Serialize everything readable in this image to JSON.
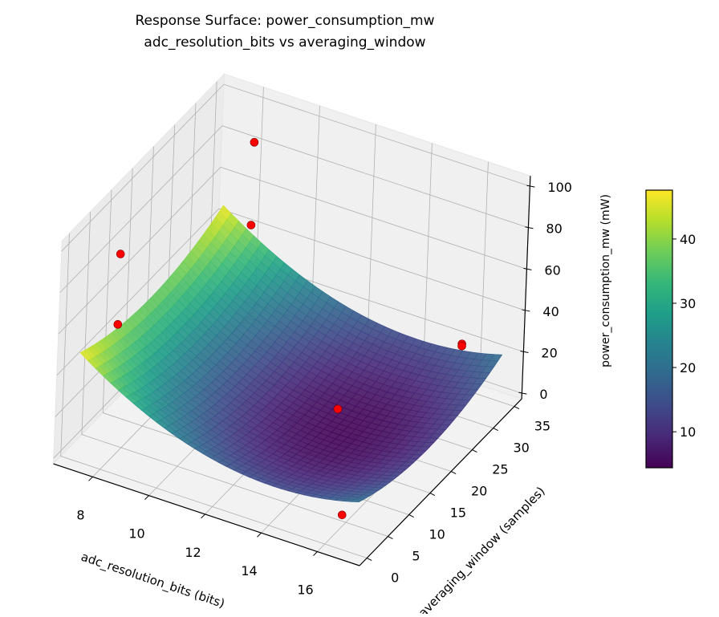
{
  "chart_data": {
    "type": "surface3d",
    "title": "Response Surface: power_consumption_mw",
    "subtitle": "adc_resolution_bits vs averaging_window",
    "xlabel": "adc_resolution_bits (bits)",
    "ylabel": "averaging_window (samples)",
    "zlabel": "power_consumption_mw (mW)",
    "xlim": [
      6.6,
      17.5
    ],
    "ylim": [
      -1.75,
      36.75
    ],
    "zlim": [
      -2.7,
      105
    ],
    "x_ticks": [
      8,
      10,
      12,
      14,
      16
    ],
    "y_ticks": [
      0,
      5,
      10,
      15,
      20,
      25,
      30,
      35
    ],
    "z_ticks": [
      0,
      20,
      40,
      60,
      80,
      100
    ],
    "grid": true,
    "colormap": "viridis",
    "surface": {
      "x_range": [
        7,
        17
      ],
      "y_range": [
        1,
        35
      ],
      "model": "z = 5 + 0.675*(x-14)^2 + 0.0309*(y-18)^2",
      "min": 5,
      "max": 47
    },
    "scatter": {
      "color": "#ff0000",
      "points": [
        {
          "x": 8,
          "y": 35,
          "z": 82
        },
        {
          "x": 8,
          "y": 35,
          "z": 42
        },
        {
          "x": 8,
          "y": 3,
          "z": 95
        },
        {
          "x": 8,
          "y": 3,
          "z": 61
        },
        {
          "x": 16,
          "y": 32,
          "z": 27
        },
        {
          "x": 16,
          "y": 32,
          "z": 26
        },
        {
          "x": 14,
          "y": 16,
          "z": 20
        },
        {
          "x": 16,
          "y": 4,
          "z": 3
        }
      ]
    },
    "colorbar": {
      "vmin": 4.4,
      "vmax": 47.6,
      "ticks": [
        10,
        20,
        30,
        40
      ]
    }
  }
}
